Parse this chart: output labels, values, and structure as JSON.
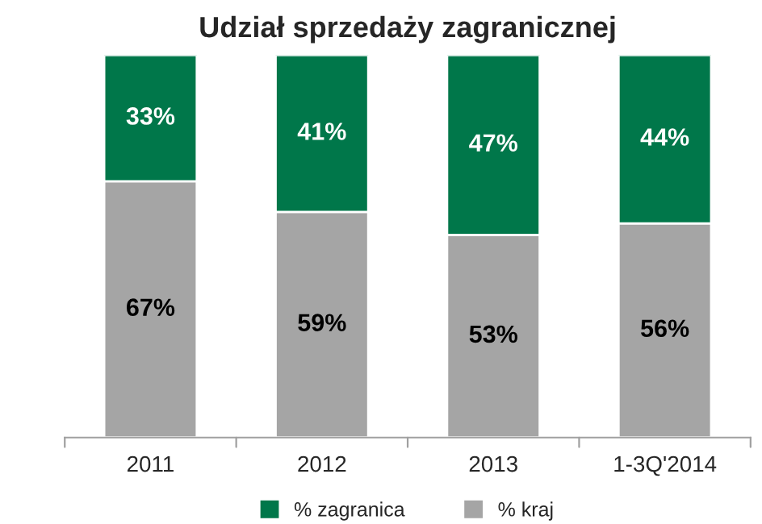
{
  "chart_data": {
    "type": "bar",
    "title": "Udział sprzedaży zagranicznej",
    "stacked": true,
    "legend": "bottom",
    "tick_labels": "x",
    "categories": [
      "2011",
      "2012",
      "2013",
      "1-3Q'2014"
    ],
    "series": [
      {
        "name": "% kraj",
        "color": "#a5a5a5",
        "values": [
          67,
          59,
          53,
          56
        ],
        "value_labels": [
          "67%",
          "59%",
          "53%",
          "56%"
        ]
      },
      {
        "name": "% zagranica",
        "color": "#00774a",
        "values": [
          33,
          41,
          47,
          44
        ],
        "value_labels": [
          "33%",
          "41%",
          "47%",
          "44%"
        ]
      }
    ]
  }
}
